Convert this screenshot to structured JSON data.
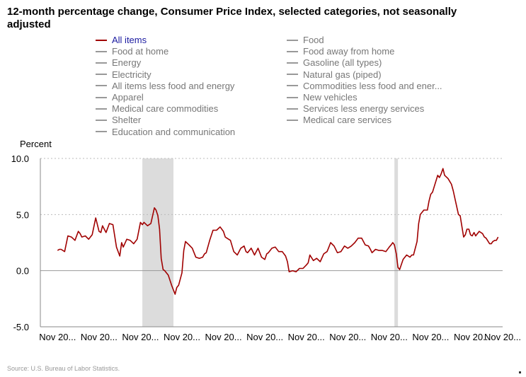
{
  "title": "12-month percentage change, Consumer Price Index, selected categories, not seasonally adjusted",
  "legend": [
    {
      "label": "All items",
      "active": true
    },
    {
      "label": "Food",
      "active": false
    },
    {
      "label": "Food at home",
      "active": false
    },
    {
      "label": "Food away from home",
      "active": false
    },
    {
      "label": "Energy",
      "active": false
    },
    {
      "label": "Gasoline (all types)",
      "active": false
    },
    {
      "label": "Electricity",
      "active": false
    },
    {
      "label": "Natural gas (piped)",
      "active": false
    },
    {
      "label": "All items less food and energy",
      "active": false
    },
    {
      "label": "Commodities less food and ener...",
      "active": false
    },
    {
      "label": "Apparel",
      "active": false
    },
    {
      "label": "New vehicles",
      "active": false
    },
    {
      "label": "Medical care commodities",
      "active": false
    },
    {
      "label": "Services less energy services",
      "active": false
    },
    {
      "label": "Shelter",
      "active": false
    },
    {
      "label": "Medical care services",
      "active": false
    },
    {
      "label": "Education and communication",
      "active": false
    }
  ],
  "source": "Source: U.S. Bureau of Labor Statistics.",
  "colors": {
    "series": "#a00000",
    "recession": "#dcdcdc",
    "grid": "#bbbbbb",
    "zero": "#999999"
  },
  "chart_data": {
    "type": "line",
    "ylabel": "Percent",
    "ylim": [
      -5,
      10
    ],
    "yticks": [
      "10.0",
      "5.0",
      "0.0",
      "-5.0"
    ],
    "ytick_values": [
      10,
      5,
      0,
      -5
    ],
    "xticks": [
      "Nov 20...",
      "Nov 20...",
      "Nov 20...",
      "Nov 20...",
      "Nov 20...",
      "Nov 20...",
      "Nov 20...",
      "Nov 20...",
      "Nov 20...",
      "Nov 20...",
      "Nov 20...",
      "Nov 20..."
    ],
    "x_start_year": 2003,
    "x_end_year": 2024,
    "recessions": [
      {
        "start": 2007.92,
        "end": 2009.42
      },
      {
        "start": 2020.08,
        "end": 2020.25
      }
    ],
    "series": [
      {
        "name": "All items",
        "points": [
          [
            2003.83,
            1.8
          ],
          [
            2003.92,
            1.9
          ],
          [
            2004.0,
            1.9
          ],
          [
            2004.17,
            1.7
          ],
          [
            2004.33,
            3.1
          ],
          [
            2004.5,
            3.0
          ],
          [
            2004.67,
            2.7
          ],
          [
            2004.83,
            3.5
          ],
          [
            2004.92,
            3.3
          ],
          [
            2005.0,
            3.0
          ],
          [
            2005.17,
            3.1
          ],
          [
            2005.33,
            2.8
          ],
          [
            2005.5,
            3.2
          ],
          [
            2005.67,
            4.7
          ],
          [
            2005.83,
            3.5
          ],
          [
            2005.92,
            3.4
          ],
          [
            2006.0,
            4.0
          ],
          [
            2006.17,
            3.4
          ],
          [
            2006.33,
            4.2
          ],
          [
            2006.5,
            4.1
          ],
          [
            2006.67,
            2.1
          ],
          [
            2006.83,
            1.3
          ],
          [
            2006.92,
            2.5
          ],
          [
            2007.0,
            2.1
          ],
          [
            2007.17,
            2.8
          ],
          [
            2007.33,
            2.7
          ],
          [
            2007.5,
            2.4
          ],
          [
            2007.67,
            2.8
          ],
          [
            2007.83,
            4.3
          ],
          [
            2007.92,
            4.1
          ],
          [
            2008.0,
            4.3
          ],
          [
            2008.17,
            4.0
          ],
          [
            2008.33,
            4.2
          ],
          [
            2008.5,
            5.6
          ],
          [
            2008.58,
            5.4
          ],
          [
            2008.67,
            4.9
          ],
          [
            2008.75,
            3.7
          ],
          [
            2008.83,
            1.1
          ],
          [
            2008.92,
            0.1
          ],
          [
            2009.0,
            0.0
          ],
          [
            2009.17,
            -0.4
          ],
          [
            2009.33,
            -1.3
          ],
          [
            2009.5,
            -2.1
          ],
          [
            2009.58,
            -1.5
          ],
          [
            2009.67,
            -1.3
          ],
          [
            2009.83,
            -0.2
          ],
          [
            2009.92,
            1.8
          ],
          [
            2010.0,
            2.6
          ],
          [
            2010.17,
            2.3
          ],
          [
            2010.33,
            2.0
          ],
          [
            2010.5,
            1.2
          ],
          [
            2010.67,
            1.1
          ],
          [
            2010.83,
            1.2
          ],
          [
            2010.92,
            1.5
          ],
          [
            2011.0,
            1.6
          ],
          [
            2011.17,
            2.7
          ],
          [
            2011.33,
            3.6
          ],
          [
            2011.5,
            3.6
          ],
          [
            2011.67,
            3.9
          ],
          [
            2011.83,
            3.5
          ],
          [
            2011.92,
            3.0
          ],
          [
            2012.0,
            2.9
          ],
          [
            2012.17,
            2.7
          ],
          [
            2012.33,
            1.7
          ],
          [
            2012.5,
            1.4
          ],
          [
            2012.67,
            2.0
          ],
          [
            2012.83,
            2.2
          ],
          [
            2012.92,
            1.7
          ],
          [
            2013.0,
            1.6
          ],
          [
            2013.17,
            2.0
          ],
          [
            2013.33,
            1.4
          ],
          [
            2013.5,
            2.0
          ],
          [
            2013.67,
            1.2
          ],
          [
            2013.83,
            1.0
          ],
          [
            2013.92,
            1.5
          ],
          [
            2014.0,
            1.6
          ],
          [
            2014.17,
            2.0
          ],
          [
            2014.33,
            2.1
          ],
          [
            2014.5,
            1.7
          ],
          [
            2014.67,
            1.7
          ],
          [
            2014.83,
            1.3
          ],
          [
            2014.92,
            0.8
          ],
          [
            2015.0,
            -0.1
          ],
          [
            2015.17,
            0.0
          ],
          [
            2015.33,
            -0.1
          ],
          [
            2015.5,
            0.2
          ],
          [
            2015.67,
            0.2
          ],
          [
            2015.83,
            0.5
          ],
          [
            2015.92,
            0.7
          ],
          [
            2016.0,
            1.4
          ],
          [
            2016.17,
            0.9
          ],
          [
            2016.33,
            1.1
          ],
          [
            2016.5,
            0.8
          ],
          [
            2016.67,
            1.5
          ],
          [
            2016.83,
            1.7
          ],
          [
            2016.92,
            2.1
          ],
          [
            2017.0,
            2.5
          ],
          [
            2017.17,
            2.2
          ],
          [
            2017.33,
            1.6
          ],
          [
            2017.5,
            1.7
          ],
          [
            2017.67,
            2.2
          ],
          [
            2017.83,
            2.0
          ],
          [
            2017.92,
            2.1
          ],
          [
            2018.0,
            2.2
          ],
          [
            2018.17,
            2.5
          ],
          [
            2018.33,
            2.9
          ],
          [
            2018.5,
            2.9
          ],
          [
            2018.67,
            2.3
          ],
          [
            2018.83,
            2.2
          ],
          [
            2018.92,
            1.9
          ],
          [
            2019.0,
            1.6
          ],
          [
            2019.17,
            1.9
          ],
          [
            2019.33,
            1.8
          ],
          [
            2019.5,
            1.8
          ],
          [
            2019.67,
            1.7
          ],
          [
            2019.83,
            2.1
          ],
          [
            2019.92,
            2.3
          ],
          [
            2020.0,
            2.5
          ],
          [
            2020.08,
            2.3
          ],
          [
            2020.17,
            1.5
          ],
          [
            2020.25,
            0.3
          ],
          [
            2020.33,
            0.1
          ],
          [
            2020.5,
            1.0
          ],
          [
            2020.67,
            1.4
          ],
          [
            2020.83,
            1.2
          ],
          [
            2020.92,
            1.4
          ],
          [
            2021.0,
            1.4
          ],
          [
            2021.17,
            2.6
          ],
          [
            2021.25,
            4.2
          ],
          [
            2021.33,
            5.0
          ],
          [
            2021.5,
            5.4
          ],
          [
            2021.67,
            5.4
          ],
          [
            2021.75,
            6.2
          ],
          [
            2021.83,
            6.8
          ],
          [
            2021.92,
            7.0
          ],
          [
            2022.0,
            7.5
          ],
          [
            2022.17,
            8.5
          ],
          [
            2022.25,
            8.3
          ],
          [
            2022.33,
            8.6
          ],
          [
            2022.42,
            9.1
          ],
          [
            2022.5,
            8.5
          ],
          [
            2022.67,
            8.2
          ],
          [
            2022.83,
            7.7
          ],
          [
            2022.92,
            7.1
          ],
          [
            2023.0,
            6.4
          ],
          [
            2023.17,
            5.0
          ],
          [
            2023.25,
            4.9
          ],
          [
            2023.33,
            4.0
          ],
          [
            2023.42,
            3.0
          ],
          [
            2023.5,
            3.2
          ],
          [
            2023.58,
            3.7
          ],
          [
            2023.67,
            3.7
          ],
          [
            2023.75,
            3.2
          ],
          [
            2023.83,
            3.1
          ],
          [
            2023.92,
            3.4
          ],
          [
            2024.0,
            3.1
          ],
          [
            2024.17,
            3.5
          ],
          [
            2024.33,
            3.3
          ],
          [
            2024.42,
            3.0
          ],
          [
            2024.5,
            2.9
          ],
          [
            2024.67,
            2.4
          ],
          [
            2024.75,
            2.4
          ],
          [
            2024.83,
            2.6
          ],
          [
            2024.92,
            2.7
          ],
          [
            2025.0,
            2.7
          ],
          [
            2025.08,
            3.0
          ]
        ]
      }
    ]
  }
}
